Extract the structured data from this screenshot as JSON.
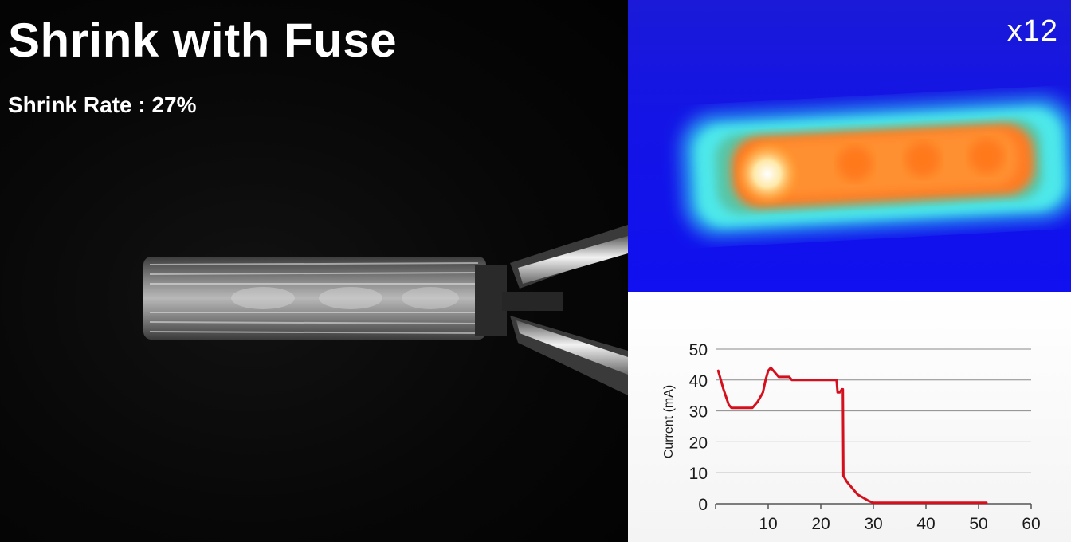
{
  "left": {
    "title": "Shrink with Fuse",
    "shrink_rate": "Shrink Rate : 27%"
  },
  "thermal": {
    "magnification": "x12"
  },
  "colors": {
    "series": "#d4101e",
    "grid": "#8a8a8a",
    "thermal_bg": "#1414e6"
  },
  "chart_data": {
    "type": "line",
    "title": "",
    "xlabel": "",
    "ylabel": "Current (mA)",
    "xlim": [
      0,
      60
    ],
    "ylim": [
      0,
      50
    ],
    "xticks": [
      10,
      20,
      30,
      40,
      50,
      60
    ],
    "yticks": [
      0,
      10,
      20,
      30,
      40,
      50
    ],
    "grid": true,
    "series": [
      {
        "x": [
          0.5,
          1.5,
          2.5,
          3,
          4,
          5,
          6,
          7,
          8,
          9,
          9.5,
          10,
          10.5,
          11,
          12,
          13,
          14,
          14.5,
          16,
          18,
          20,
          22,
          23,
          23.2,
          23.6,
          24,
          24.2,
          24.3,
          25,
          26,
          27,
          28,
          29,
          30,
          35,
          40,
          45,
          50,
          51.5
        ],
        "y": [
          43,
          37,
          32,
          31,
          31,
          31,
          31,
          31,
          33,
          36,
          40,
          43,
          44,
          43,
          41,
          41,
          41,
          40,
          40,
          40,
          40,
          40,
          40,
          36,
          36,
          37,
          37,
          9,
          7,
          5,
          3,
          2,
          1,
          0.3,
          0.3,
          0.3,
          0.3,
          0.3,
          0.3
        ]
      }
    ]
  }
}
